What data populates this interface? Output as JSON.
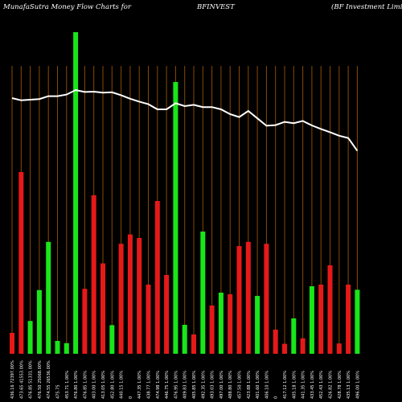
{
  "header": {
    "brand": "MunafaSutra  Money Flow  Charts for",
    "ticker": "BFINVEST",
    "company": "(BF Investment Limit"
  },
  "colors": {
    "background": "#000000",
    "up_bar": "#19e619",
    "down_bar": "#e61919",
    "grid_line": "#8a4a00",
    "price_line": "#ffffff",
    "label_text": "#ffffff"
  },
  "chart_data": {
    "type": "bar",
    "title": "MunafaSutra  Money Flow  Charts for BFINVEST (BF Investment Limit",
    "xlabel": "",
    "ylabel": "",
    "grid": true,
    "ylim": [
      0,
      100
    ],
    "categories": [
      "436.16 72397.00%",
      "473.65 41553.00%",
      "476.85 51331.00%",
      "476.50 25068.00%",
      "474.55 26536.00%",
      "475.75",
      "453.71 1.00%",
      "476.80 1.00%",
      "476.85 1.00%",
      "403.00 1.00%",
      "413.05 1.00%",
      "452.80 1.00%",
      "440.15 1.00%",
      "0",
      "447.35 1.00%",
      "438.77 1.00%",
      "474.98 1.00%",
      "446.75 1.00%",
      "476.95 1.00%",
      "409.83 1.00%",
      "405.85 1.00%",
      "492.35 1.00%",
      "493.03 1.00%",
      "497.00 1.00%",
      "488.80 1.00%",
      "457.50 1.00%",
      "423.88 1.00%",
      "401.60 1.00%",
      "406.10 1.00%",
      "0",
      "417.12 1.00%",
      "405.18 1.00%",
      "441.35 1.00%",
      "433.45 1.00%",
      "452.43 1.00%",
      "426.82 1.00%",
      "428.78 1.00%",
      "435.13 1.00%",
      "496.00 1.00%"
    ],
    "direction": [
      "down",
      "down",
      "up",
      "up",
      "up",
      "up",
      "up",
      "up",
      "down",
      "down",
      "down",
      "up",
      "down",
      "down",
      "down",
      "down",
      "down",
      "down",
      "up",
      "up",
      "down",
      "up",
      "down",
      "up",
      "down",
      "down",
      "down",
      "up",
      "down",
      "down",
      "down",
      "up",
      "down",
      "up",
      "down",
      "down",
      "down",
      "down",
      "up"
    ],
    "values": [
      6.5,
      56.5,
      10.2,
      19.8,
      34.8,
      4.0,
      3.3,
      100,
      20.2,
      49.3,
      28.1,
      8.9,
      34.2,
      37.1,
      36.0,
      21.5,
      47.5,
      24.5,
      84.5,
      9.0,
      6.0,
      38.0,
      15.0,
      19.0,
      18.5,
      33.5,
      34.8,
      18.0,
      34.2,
      7.5,
      3.1,
      11.0,
      4.8,
      21.0,
      21.5,
      27.5,
      3.2,
      21.5,
      19.9
    ],
    "price_line": [
      79.5,
      78.8,
      79.0,
      79.2,
      80.1,
      80.1,
      80.6,
      82.0,
      81.4,
      81.5,
      81.2,
      81.3,
      80.4,
      79.3,
      78.4,
      77.6,
      76.0,
      76.0,
      77.9,
      77.0,
      77.4,
      76.7,
      76.7,
      76.0,
      74.5,
      73.6,
      75.5,
      73.2,
      70.9,
      71.1,
      72.1,
      71.7,
      72.4,
      71.0,
      69.9,
      68.9,
      67.8,
      67.1,
      63.1
    ]
  }
}
